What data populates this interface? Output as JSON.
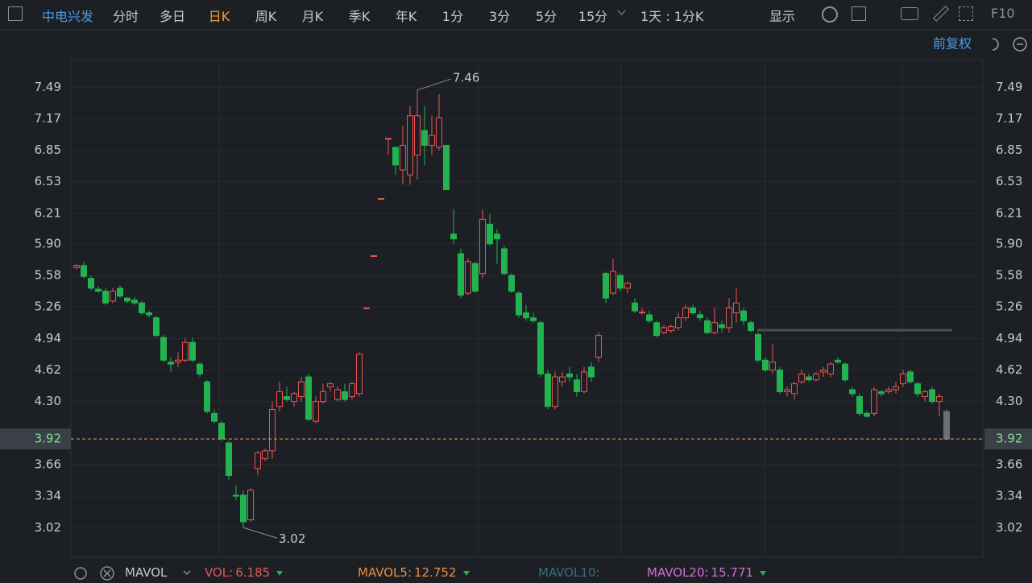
{
  "toolbar": {
    "stock": "中电兴发",
    "periods": [
      "分时",
      "多日",
      "日K",
      "周K",
      "月K",
      "季K",
      "年K",
      "1分",
      "3分",
      "5分",
      "15分"
    ],
    "active_index": 2,
    "range": "1天 : 1分K",
    "display": "显示",
    "f10": "F10"
  },
  "adjust": "前复权",
  "chart_data": {
    "type": "candlestick",
    "ylim": [
      2.72,
      7.77
    ],
    "yticks": [
      7.49,
      7.17,
      6.85,
      6.53,
      6.21,
      {
        "value": 5.9,
        "label": "5.90"
      },
      5.58,
      5.26,
      4.94,
      4.62,
      {
        "value": 4.3,
        "label": "4.30"
      },
      3.66,
      3.34,
      3.02
    ],
    "up_color": "#ef5350",
    "down_color": "#21b34f",
    "current_color": "#6b7077",
    "current_price": 3.92,
    "high_label": 7.46,
    "low_label": 3.02,
    "candles": [
      [
        5.66,
        5.7,
        5.64,
        5.68
      ],
      [
        5.68,
        5.72,
        5.55,
        5.57
      ],
      [
        5.55,
        5.58,
        5.43,
        5.45
      ],
      [
        5.44,
        5.47,
        5.4,
        5.42
      ],
      [
        5.42,
        5.45,
        5.28,
        5.3
      ],
      [
        5.32,
        5.45,
        5.3,
        5.42
      ],
      [
        5.45,
        5.48,
        5.35,
        5.37
      ],
      [
        5.35,
        5.36,
        5.3,
        5.32
      ],
      [
        5.33,
        5.36,
        5.28,
        5.3
      ],
      [
        5.3,
        5.32,
        5.18,
        5.2
      ],
      [
        5.2,
        5.22,
        5.15,
        5.18
      ],
      [
        5.15,
        5.17,
        4.95,
        4.97
      ],
      [
        4.95,
        4.98,
        4.7,
        4.72
      ],
      [
        4.7,
        4.75,
        4.6,
        4.68
      ],
      [
        4.7,
        4.8,
        4.65,
        4.72
      ],
      [
        4.72,
        4.95,
        4.7,
        4.9
      ],
      [
        4.9,
        4.95,
        4.7,
        4.72
      ],
      [
        4.68,
        4.7,
        4.55,
        4.58
      ],
      [
        4.5,
        4.52,
        4.18,
        4.2
      ],
      [
        4.18,
        4.22,
        4.08,
        4.1
      ],
      [
        4.08,
        4.1,
        3.9,
        3.92
      ],
      [
        3.88,
        3.9,
        3.5,
        3.55
      ],
      [
        3.35,
        3.45,
        3.3,
        3.34
      ],
      [
        3.35,
        3.4,
        3.02,
        3.08
      ],
      [
        3.1,
        3.42,
        3.08,
        3.4
      ],
      [
        3.62,
        3.8,
        3.55,
        3.78
      ],
      [
        3.72,
        3.82,
        3.7,
        3.8
      ],
      [
        3.8,
        4.3,
        3.72,
        4.22
      ],
      [
        4.25,
        4.5,
        4.2,
        4.4
      ],
      [
        4.35,
        4.45,
        4.3,
        4.32
      ],
      [
        4.3,
        4.4,
        4.25,
        4.38
      ],
      [
        4.35,
        4.55,
        4.3,
        4.5
      ],
      [
        4.55,
        4.58,
        4.1,
        4.12
      ],
      [
        4.1,
        4.35,
        4.08,
        4.3
      ],
      [
        4.3,
        4.48,
        4.28,
        4.4
      ],
      [
        4.45,
        4.5,
        4.4,
        4.48
      ],
      [
        4.32,
        4.45,
        4.3,
        4.42
      ],
      [
        4.4,
        4.48,
        4.3,
        4.32
      ],
      [
        4.35,
        4.5,
        4.32,
        4.48
      ],
      [
        4.38,
        4.8,
        4.35,
        4.78
      ],
      [
        5.25,
        5.25,
        5.25,
        5.25
      ],
      [
        5.78,
        5.78,
        5.78,
        5.78
      ],
      [
        6.36,
        6.36,
        6.36,
        6.36
      ],
      [
        6.97,
        6.97,
        6.8,
        6.97
      ],
      [
        6.88,
        6.88,
        6.6,
        6.7
      ],
      [
        6.65,
        7.1,
        6.5,
        6.9
      ],
      [
        6.6,
        7.3,
        6.5,
        7.2
      ],
      [
        6.8,
        7.46,
        6.55,
        7.2
      ],
      [
        7.05,
        7.3,
        6.7,
        6.9
      ],
      [
        6.9,
        7.2,
        6.8,
        7.0
      ],
      [
        6.88,
        7.42,
        6.85,
        7.18
      ],
      [
        6.9,
        6.9,
        6.45,
        6.45
      ],
      [
        6.0,
        6.25,
        5.9,
        5.95
      ],
      [
        5.8,
        5.85,
        5.35,
        5.38
      ],
      [
        5.4,
        5.75,
        5.38,
        5.72
      ],
      [
        5.7,
        5.72,
        5.4,
        5.42
      ],
      [
        5.6,
        6.25,
        5.55,
        6.15
      ],
      [
        6.1,
        6.2,
        5.88,
        5.9
      ],
      [
        6.0,
        6.05,
        5.7,
        5.95
      ],
      [
        5.85,
        5.88,
        5.58,
        5.6
      ],
      [
        5.58,
        5.6,
        5.4,
        5.42
      ],
      [
        5.4,
        5.42,
        5.15,
        5.18
      ],
      [
        5.2,
        5.28,
        5.12,
        5.15
      ],
      [
        5.15,
        5.2,
        5.1,
        5.12
      ],
      [
        5.1,
        5.12,
        4.55,
        4.58
      ],
      [
        4.58,
        4.62,
        4.22,
        4.25
      ],
      [
        4.25,
        4.6,
        4.22,
        4.55
      ],
      [
        4.5,
        4.6,
        4.45,
        4.55
      ],
      [
        4.58,
        4.65,
        4.5,
        4.55
      ],
      [
        4.52,
        4.58,
        4.35,
        4.4
      ],
      [
        4.4,
        4.65,
        4.38,
        4.6
      ],
      [
        4.65,
        4.7,
        4.5,
        4.55
      ],
      [
        4.75,
        5.0,
        4.7,
        4.97
      ],
      [
        5.6,
        5.62,
        5.3,
        5.35
      ],
      [
        5.4,
        5.75,
        5.38,
        5.62
      ],
      [
        5.58,
        5.6,
        5.42,
        5.45
      ],
      [
        5.45,
        5.52,
        5.4,
        5.5
      ],
      [
        5.3,
        5.35,
        5.2,
        5.22
      ],
      [
        5.2,
        5.25,
        5.18,
        5.21
      ],
      [
        5.18,
        5.22,
        5.1,
        5.12
      ],
      [
        5.1,
        5.12,
        4.95,
        4.97
      ],
      [
        5.0,
        5.08,
        4.98,
        5.05
      ],
      [
        5.02,
        5.08,
        5.0,
        5.06
      ],
      [
        5.05,
        5.2,
        5.02,
        5.15
      ],
      [
        5.15,
        5.28,
        5.12,
        5.25
      ],
      [
        5.25,
        5.28,
        5.18,
        5.2
      ],
      [
        5.18,
        5.22,
        5.12,
        5.15
      ],
      [
        5.12,
        5.15,
        4.98,
        5.0
      ],
      [
        5.0,
        5.25,
        4.98,
        5.1
      ],
      [
        5.08,
        5.12,
        5.0,
        5.05
      ],
      [
        5.05,
        5.35,
        5.0,
        5.25
      ],
      [
        5.2,
        5.45,
        5.1,
        5.3
      ],
      [
        5.22,
        5.25,
        5.08,
        5.12
      ],
      [
        5.1,
        5.12,
        5.0,
        5.02
      ],
      [
        4.98,
        5.0,
        4.7,
        4.72
      ],
      [
        4.72,
        4.75,
        4.6,
        4.62
      ],
      [
        4.62,
        4.88,
        4.58,
        4.7
      ],
      [
        4.62,
        4.65,
        4.38,
        4.4
      ],
      [
        4.4,
        4.45,
        4.35,
        4.42
      ],
      [
        4.38,
        4.5,
        4.32,
        4.48
      ],
      [
        4.5,
        4.62,
        4.48,
        4.58
      ],
      [
        4.55,
        4.58,
        4.5,
        4.52
      ],
      [
        4.52,
        4.6,
        4.5,
        4.58
      ],
      [
        4.6,
        4.65,
        4.55,
        4.62
      ],
      [
        4.58,
        4.7,
        4.55,
        4.68
      ],
      [
        4.72,
        4.75,
        4.68,
        4.7
      ],
      [
        4.68,
        4.7,
        4.5,
        4.52
      ],
      [
        4.42,
        4.45,
        4.35,
        4.38
      ],
      [
        4.35,
        4.38,
        4.15,
        4.18
      ],
      [
        4.18,
        4.2,
        4.14,
        4.15
      ],
      [
        4.18,
        4.45,
        4.15,
        4.42
      ],
      [
        4.4,
        4.42,
        4.35,
        4.38
      ],
      [
        4.4,
        4.45,
        4.38,
        4.42
      ],
      [
        4.42,
        4.5,
        4.38,
        4.45
      ],
      [
        4.48,
        4.62,
        4.45,
        4.58
      ],
      [
        4.6,
        4.62,
        4.48,
        4.5
      ],
      [
        4.48,
        4.5,
        4.35,
        4.38
      ],
      [
        4.35,
        4.42,
        4.3,
        4.4
      ],
      [
        4.42,
        4.45,
        4.28,
        4.3
      ],
      [
        4.3,
        4.38,
        4.15,
        4.35
      ],
      [
        4.2,
        4.22,
        3.92,
        3.92
      ]
    ]
  },
  "indicators": {
    "name": "MAVOL",
    "items": [
      {
        "label": "VOL:",
        "value": "6.185",
        "color": "#e65757"
      },
      {
        "label": "MAVOL5:",
        "value": "12.752",
        "color": "#ee8c3a"
      },
      {
        "label": "MAVOL10:",
        "color": "#386b82"
      },
      {
        "label": "MAVOL20:",
        "value": "15.771",
        "color": "#d56ad6"
      }
    ]
  }
}
